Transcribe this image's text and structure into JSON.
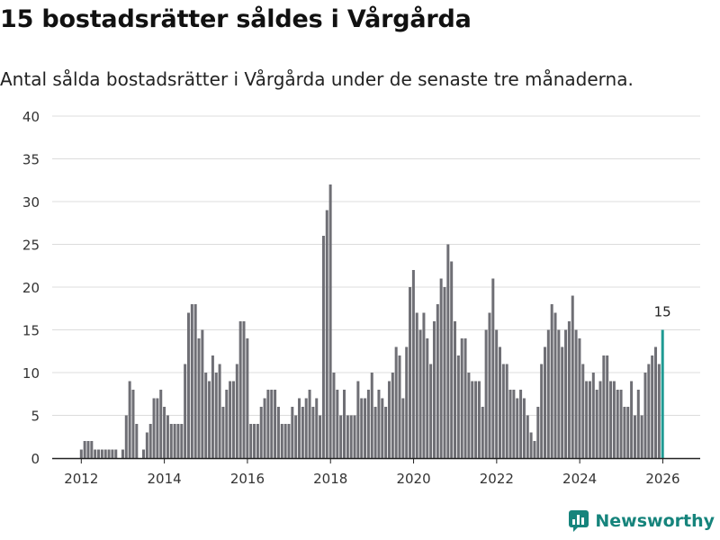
{
  "header": {
    "title": "15 bostadsrätter såldes i Vårgårda",
    "subtitle": "Antal sålda bostadsrätter i Vårgårda under de senaste tre månaderna."
  },
  "brand": {
    "name": "Newsworthy",
    "color": "#16847c"
  },
  "chart_data": {
    "type": "bar",
    "title": "15 bostadsrätter såldes i Vårgårda",
    "subtitle": "Antal sålda bostadsrätter i Vårgårda under de senaste tre månaderna.",
    "xlabel": "",
    "ylabel": "",
    "ylim": [
      0,
      40
    ],
    "yticks": [
      0,
      5,
      10,
      15,
      20,
      25,
      30,
      35,
      40
    ],
    "xticks": [
      2012,
      2014,
      2016,
      2018,
      2020,
      2022,
      2024,
      2026
    ],
    "xlim": [
      2011.3,
      2026.9
    ],
    "grid": true,
    "start": 2012.0,
    "step": 0.0833,
    "bar_color": "#6f6f75",
    "highlight_color": "#1f9a93",
    "highlight_label": "15",
    "values": [
      1,
      2,
      2,
      2,
      1,
      1,
      1,
      1,
      1,
      1,
      1,
      0,
      1,
      5,
      9,
      8,
      4,
      0,
      1,
      3,
      4,
      7,
      7,
      8,
      6,
      5,
      4,
      4,
      4,
      4,
      11,
      17,
      18,
      18,
      14,
      15,
      10,
      9,
      12,
      10,
      11,
      6,
      8,
      9,
      9,
      11,
      16,
      16,
      14,
      4,
      4,
      4,
      6,
      7,
      8,
      8,
      8,
      6,
      4,
      4,
      4,
      6,
      5,
      7,
      6,
      7,
      8,
      6,
      7,
      5,
      26,
      29,
      32,
      10,
      8,
      5,
      8,
      5,
      5,
      5,
      9,
      7,
      7,
      8,
      10,
      6,
      8,
      7,
      6,
      9,
      10,
      13,
      12,
      7,
      13,
      20,
      22,
      17,
      15,
      17,
      14,
      11,
      16,
      18,
      21,
      20,
      25,
      23,
      16,
      12,
      14,
      14,
      10,
      9,
      9,
      9,
      6,
      15,
      17,
      21,
      15,
      13,
      11,
      11,
      8,
      8,
      7,
      8,
      7,
      5,
      3,
      2,
      6,
      11,
      13,
      15,
      18,
      17,
      15,
      13,
      15,
      16,
      19,
      15,
      14,
      11,
      9,
      9,
      10,
      8,
      9,
      12,
      12,
      9,
      9,
      8,
      8,
      6,
      6,
      9,
      5,
      8,
      5,
      10,
      11,
      12,
      13,
      11,
      15
    ]
  }
}
